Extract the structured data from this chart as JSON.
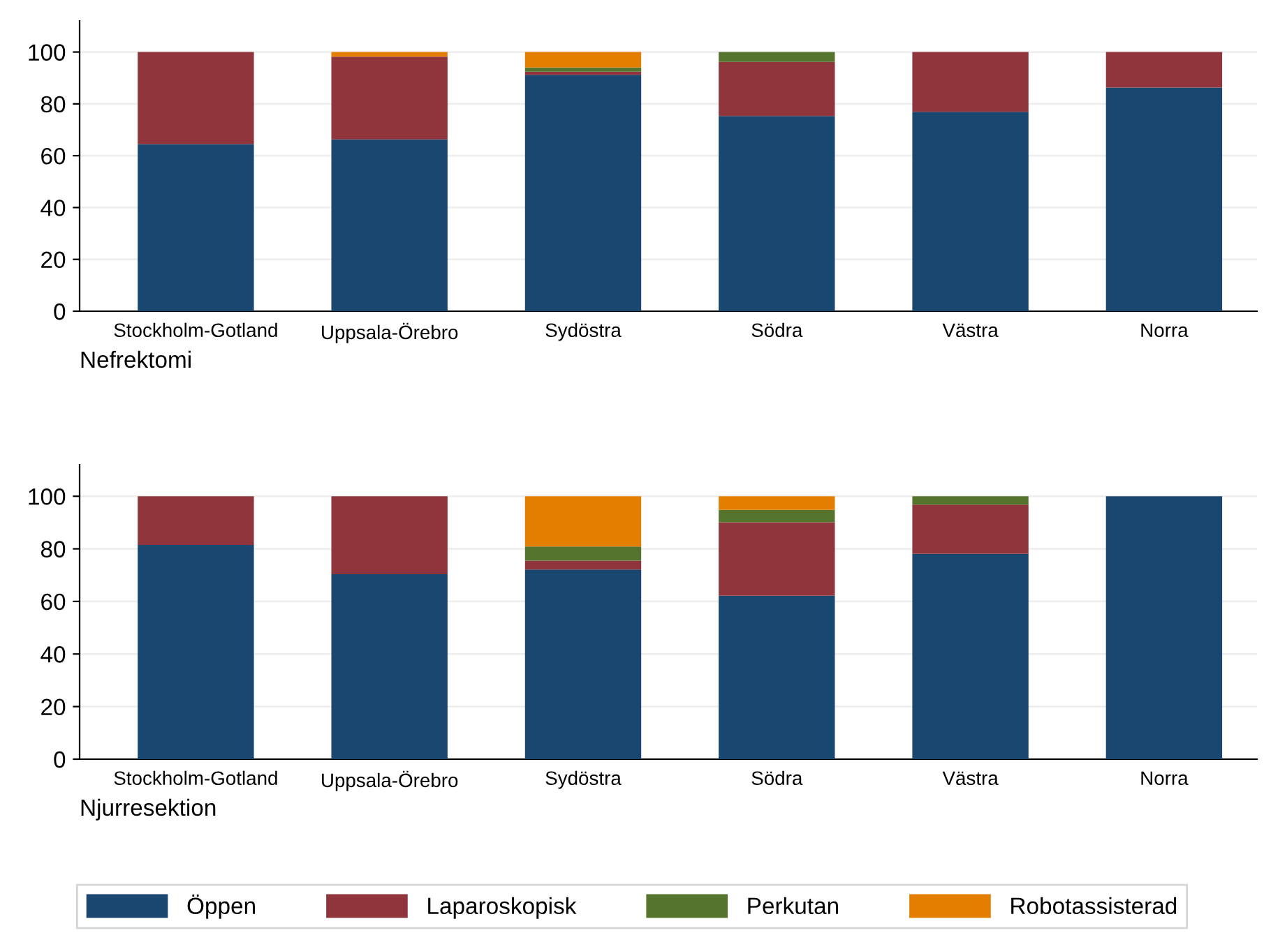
{
  "chart_data": [
    {
      "type": "bar",
      "stacked": true,
      "xlabel": "Nefrektomi",
      "categories": [
        "Stockholm-Gotland",
        "Uppsala-Örebro",
        "Sydöstra",
        "Södra",
        "Västra",
        "Norra"
      ],
      "series": [
        {
          "color": "#1a476f",
          "values": [
            64.5,
            66.3,
            91.2,
            75.3,
            76.9,
            86.3
          ]
        },
        {
          "color": "#90353b",
          "values": [
            35.5,
            31.9,
            1.2,
            20.9,
            23.1,
            13.7
          ]
        },
        {
          "color": "#55752f",
          "values": [
            0,
            0,
            1.6,
            3.8,
            0,
            0
          ]
        },
        {
          "color": "#e37e00",
          "values": [
            0,
            1.8,
            6,
            0,
            0,
            0
          ]
        }
      ],
      "ylim": [
        0,
        112
      ],
      "yticks": [
        0,
        20,
        40,
        60,
        80,
        100
      ],
      "grid": "y"
    },
    {
      "type": "bar",
      "stacked": true,
      "xlabel": "Njurresektion",
      "categories": [
        "Stockholm-Gotland",
        "Uppsala-Örebro",
        "Sydöstra",
        "Södra",
        "Västra",
        "Norra"
      ],
      "series": [
        {
          "name": "Öppen",
          "color": "#1a476f",
          "values": [
            81.5,
            70.3,
            72.1,
            62.2,
            78.1,
            100
          ]
        },
        {
          "name": "Laparoskopisk",
          "color": "#90353b",
          "values": [
            18.5,
            29.7,
            3.4,
            27.9,
            18.7,
            0
          ]
        },
        {
          "name": "Perkutan",
          "color": "#55752f",
          "values": [
            0,
            0,
            5.4,
            4.7,
            3.2,
            0
          ]
        },
        {
          "name": "Robotassisterad",
          "color": "#e37e00",
          "values": [
            0,
            0,
            19.1,
            5.2,
            0,
            0
          ]
        }
      ],
      "ylim": [
        0,
        112
      ],
      "yticks": [
        0,
        20,
        40,
        60,
        80,
        100
      ],
      "grid": "y",
      "legend": "bottom"
    }
  ]
}
